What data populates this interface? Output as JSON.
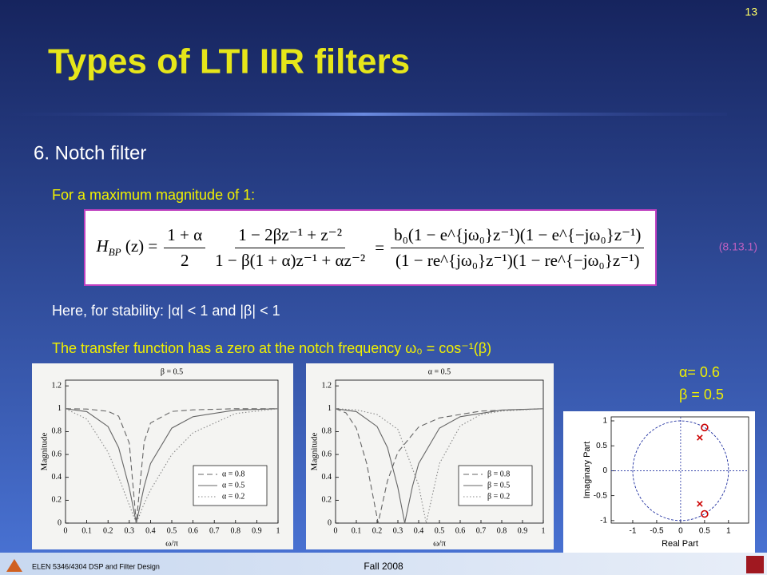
{
  "slide": {
    "page_number": "13",
    "title": "Types of LTI IIR filters",
    "heading": "6. Notch filter",
    "intro": "For a maximum magnitude of 1:",
    "equation": {
      "lhs": "H",
      "lhs_sub": "BP",
      "lhs_arg": "(z) =",
      "frac1_num": "1 + α",
      "frac1_den": "2",
      "frac2_num": "1 − 2βz⁻¹ + z⁻²",
      "frac2_den": "1 − β(1 + α)z⁻¹ + αz⁻²",
      "eq_sign": "=",
      "frac3_num": "b₀(1 − e^{jω₀}z⁻¹)(1 − e^{−jω₀}z⁻¹)",
      "frac3_den": "(1 − re^{jω₀}z⁻¹)(1 − re^{−jω₀}z⁻¹)",
      "number": "(8.13.1)"
    },
    "stability": "Here, for stability: |α| < 1 and |β| < 1",
    "zero_note": "The transfer function has a zero at the notch frequency ω₀ = cos⁻¹(β)",
    "params": [
      "α= 0.6",
      "β = 0.5"
    ],
    "footer_left": "ELEN 5346/4304 DSP and Filter Design",
    "footer_center": "Fall 2008"
  },
  "chart_data": [
    {
      "type": "line",
      "title": "β = 0.5",
      "xlabel": "ω/π",
      "ylabel": "Magnitude",
      "xlim": [
        0,
        1
      ],
      "ylim": [
        0,
        1.25
      ],
      "xticks": [
        0,
        0.1,
        0.2,
        0.3,
        0.4,
        0.5,
        0.6,
        0.7,
        0.8,
        0.9,
        1
      ],
      "yticks": [
        0,
        0.2,
        0.4,
        0.6,
        0.8,
        1,
        1.2
      ],
      "legend": "lower right",
      "series": [
        {
          "name": "α = 0.8",
          "color": "#666666",
          "dash": "dashed",
          "x": [
            0,
            0.1,
            0.2,
            0.25,
            0.3,
            0.333,
            0.37,
            0.4,
            0.5,
            0.6,
            0.8,
            1
          ],
          "values": [
            1,
            0.997,
            0.978,
            0.935,
            0.7,
            0,
            0.71,
            0.875,
            0.976,
            0.99,
            1,
            1
          ]
        },
        {
          "name": "α = 0.5",
          "color": "#666666",
          "dash": "solid",
          "x": [
            0,
            0.1,
            0.2,
            0.25,
            0.3,
            0.333,
            0.37,
            0.4,
            0.5,
            0.6,
            0.8,
            1
          ],
          "values": [
            1,
            0.975,
            0.844,
            0.66,
            0.31,
            0,
            0.32,
            0.52,
            0.83,
            0.93,
            0.989,
            1
          ]
        },
        {
          "name": "α = 0.2",
          "color": "#888888",
          "dash": "dotted",
          "x": [
            0,
            0.1,
            0.2,
            0.25,
            0.3,
            0.333,
            0.37,
            0.4,
            0.5,
            0.6,
            0.8,
            1
          ],
          "values": [
            1,
            0.91,
            0.62,
            0.4,
            0.16,
            0,
            0.17,
            0.29,
            0.6,
            0.79,
            0.958,
            1
          ]
        }
      ]
    },
    {
      "type": "line",
      "title": "α = 0.5",
      "xlabel": "ω/π",
      "ylabel": "Magnitude",
      "xlim": [
        0,
        1
      ],
      "ylim": [
        0,
        1.25
      ],
      "xticks": [
        0,
        0.1,
        0.2,
        0.3,
        0.4,
        0.5,
        0.6,
        0.7,
        0.8,
        0.9,
        1
      ],
      "yticks": [
        0,
        0.2,
        0.4,
        0.6,
        0.8,
        1,
        1.2
      ],
      "legend": "lower right",
      "series": [
        {
          "name": "β = 0.8",
          "color": "#666666",
          "dash": "dashed",
          "x": [
            0,
            0.05,
            0.1,
            0.15,
            0.205,
            0.25,
            0.3,
            0.4,
            0.5,
            0.7,
            1
          ],
          "values": [
            1,
            0.964,
            0.83,
            0.52,
            0,
            0.37,
            0.62,
            0.84,
            0.92,
            0.98,
            1
          ]
        },
        {
          "name": "β = 0.5",
          "color": "#666666",
          "dash": "solid",
          "x": [
            0,
            0.1,
            0.2,
            0.25,
            0.3,
            0.333,
            0.37,
            0.4,
            0.5,
            0.6,
            0.8,
            1
          ],
          "values": [
            1,
            0.975,
            0.844,
            0.66,
            0.31,
            0,
            0.32,
            0.52,
            0.83,
            0.93,
            0.989,
            1
          ]
        },
        {
          "name": "β = 0.2",
          "color": "#888888",
          "dash": "dotted",
          "x": [
            0,
            0.1,
            0.2,
            0.3,
            0.4,
            0.436,
            0.5,
            0.6,
            0.7,
            0.8,
            1
          ],
          "values": [
            1,
            0.99,
            0.95,
            0.82,
            0.33,
            0,
            0.52,
            0.85,
            0.95,
            0.98,
            1
          ]
        }
      ]
    },
    {
      "type": "scatter",
      "xlabel": "Real Part",
      "ylabel": "Imaginary Part",
      "xlim": [
        -1.45,
        1.42
      ],
      "ylim": [
        -1.05,
        1.08
      ],
      "xticks": [
        -1,
        -0.5,
        0,
        0.5,
        1
      ],
      "yticks": [
        -1,
        -0.5,
        0,
        0.5,
        1
      ],
      "color": "#cc0000",
      "zeros": {
        "real": [
          0.5,
          0.5
        ],
        "imag": [
          0.866,
          -0.866
        ]
      },
      "poles": {
        "real": [
          0.4,
          0.4
        ],
        "imag": [
          0.663,
          -0.663
        ]
      }
    }
  ]
}
